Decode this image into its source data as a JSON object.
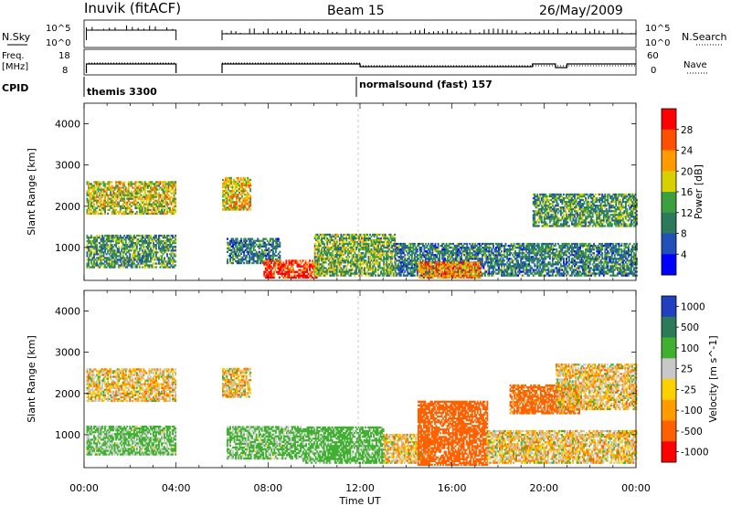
{
  "header": {
    "station": "Inuvik (fitACF)",
    "beam": "Beam 15",
    "date": "26/May/2009"
  },
  "time_axis": {
    "label": "Time UT",
    "ticks": [
      "00:00",
      "04:00",
      "08:00",
      "12:00",
      "16:00",
      "20:00",
      "00:00"
    ]
  },
  "top_panels": {
    "nsky_label": "N.Sky",
    "nsky_ticks": [
      "10^5",
      "10^0"
    ],
    "nsearch_label": "N.Search",
    "nsearch_ticks": [
      "10^5",
      "10^0"
    ],
    "freq_label_1": "Freq.",
    "freq_label_2": "[MHz]",
    "freq_ticks": [
      "18",
      "8"
    ],
    "nave_label": "Nave",
    "nave_ticks": [
      "60",
      "0"
    ],
    "cpid_label": "CPID",
    "cpid_1": "themis 3300",
    "cpid_2": "normalsound (fast) 157"
  },
  "chart_data": [
    {
      "type": "heatmap",
      "name": "power",
      "ylabel": "Slant Range [km]",
      "ylim": [
        200,
        4500
      ],
      "yticks": [
        "1000",
        "2000",
        "3000",
        "4000"
      ],
      "xlim": [
        0,
        24
      ],
      "colorbar": {
        "label": "Power [dB]",
        "ticks": [
          "4",
          "8",
          "12",
          "16",
          "20",
          "24",
          "28"
        ],
        "colors": [
          "#0000ff",
          "#2050b8",
          "#2d7a5a",
          "#3ca040",
          "#d9d000",
          "#ff9a00",
          "#ff5000",
          "#ff0000"
        ]
      },
      "regions": [
        {
          "t0": 0.1,
          "t1": 4.0,
          "r0": 1800,
          "r1": 2600,
          "level": 18
        },
        {
          "t0": 0.1,
          "t1": 4.0,
          "r0": 500,
          "r1": 1300,
          "level": 12
        },
        {
          "t0": 6.0,
          "t1": 7.2,
          "r0": 1900,
          "r1": 2700,
          "level": 20
        },
        {
          "t0": 6.2,
          "t1": 8.5,
          "r0": 600,
          "r1": 1200,
          "level": 10
        },
        {
          "t0": 7.8,
          "t1": 10.2,
          "r0": 250,
          "r1": 700,
          "level": 28
        },
        {
          "t0": 10.0,
          "t1": 13.5,
          "r0": 300,
          "r1": 1300,
          "level": 14
        },
        {
          "t0": 13.5,
          "t1": 24.0,
          "r0": 300,
          "r1": 1100,
          "level": 10
        },
        {
          "t0": 14.5,
          "t1": 17.2,
          "r0": 250,
          "r1": 650,
          "level": 24
        },
        {
          "t0": 19.5,
          "t1": 24.0,
          "r0": 1500,
          "r1": 2300,
          "level": 12
        }
      ]
    },
    {
      "type": "heatmap",
      "name": "velocity",
      "ylabel": "Slant Range [km]",
      "ylim": [
        200,
        4500
      ],
      "yticks": [
        "1000",
        "2000",
        "3000",
        "4000"
      ],
      "xlim": [
        0,
        24
      ],
      "colorbar": {
        "label": "Velocity [m s^-1]",
        "ticks": [
          "1000",
          "500",
          "100",
          "25",
          "-25",
          "-100",
          "-500",
          "-1000"
        ],
        "colors": [
          "#2040c0",
          "#2d7a5a",
          "#40b030",
          "#c8c8c8",
          "#ffd000",
          "#ff9a00",
          "#ff6000",
          "#ff0000"
        ]
      },
      "regions": [
        {
          "t0": 0.1,
          "t1": 4.0,
          "r0": 1800,
          "r1": 2600,
          "level": 0
        },
        {
          "t0": 0.1,
          "t1": 4.0,
          "r0": 500,
          "r1": 1200,
          "level": 150
        },
        {
          "t0": 6.0,
          "t1": 7.2,
          "r0": 1900,
          "r1": 2600,
          "level": 0
        },
        {
          "t0": 6.2,
          "t1": 9.5,
          "r0": 400,
          "r1": 1200,
          "level": 150
        },
        {
          "t0": 9.5,
          "t1": 13.0,
          "r0": 300,
          "r1": 1200,
          "level": 200
        },
        {
          "t0": 13.0,
          "t1": 15.0,
          "r0": 300,
          "r1": 1000,
          "level": 0
        },
        {
          "t0": 14.5,
          "t1": 17.5,
          "r0": 250,
          "r1": 1800,
          "level": -300
        },
        {
          "t0": 17.5,
          "t1": 24.0,
          "r0": 300,
          "r1": 1100,
          "level": 0
        },
        {
          "t0": 18.5,
          "t1": 21.5,
          "r0": 1500,
          "r1": 2200,
          "level": -200
        },
        {
          "t0": 20.5,
          "t1": 24.0,
          "r0": 1600,
          "r1": 2700,
          "level": 0
        }
      ]
    }
  ]
}
